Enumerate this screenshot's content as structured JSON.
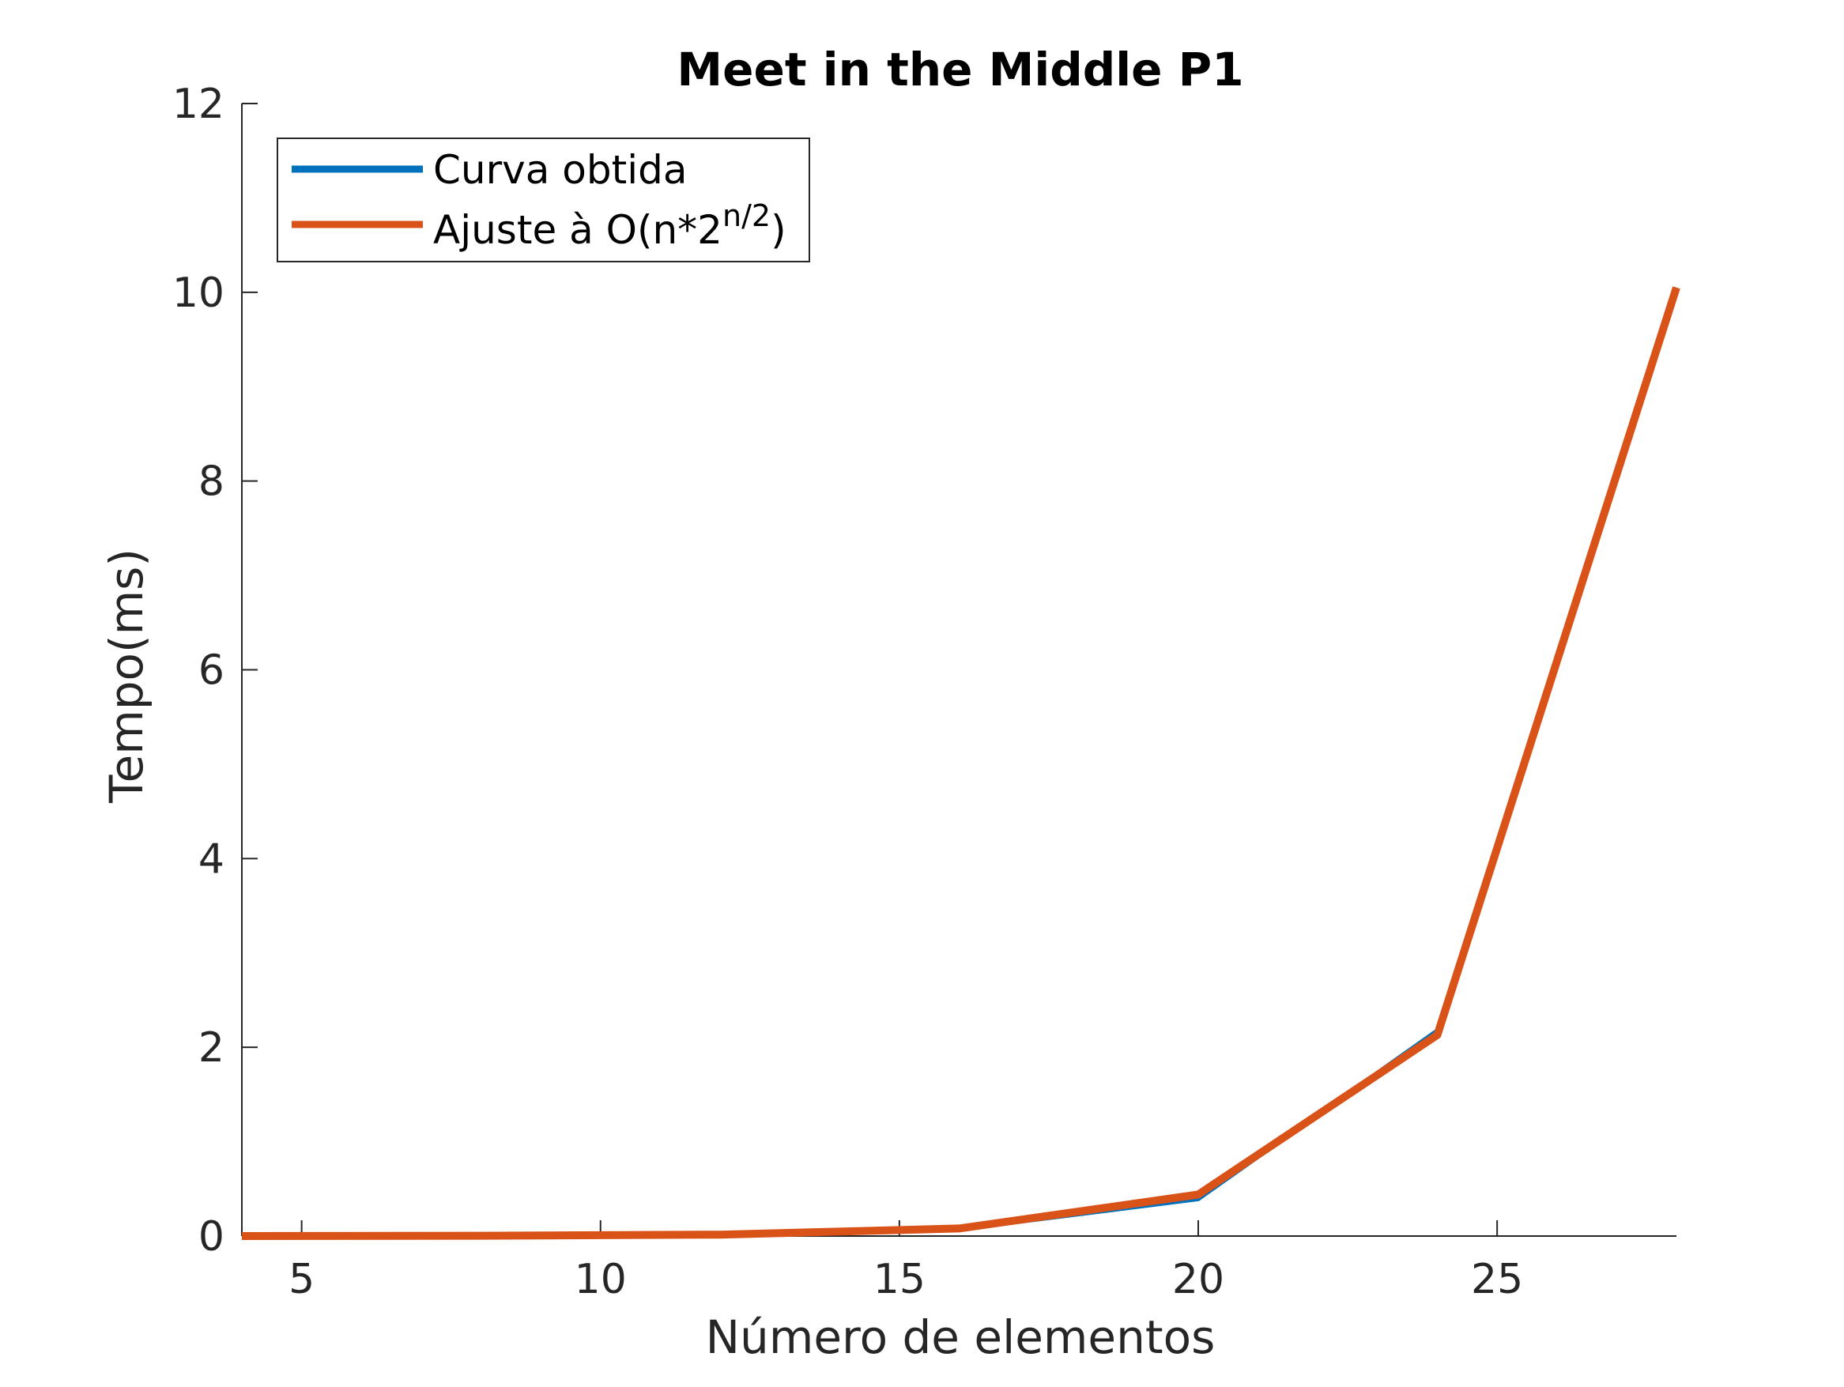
{
  "chart_data": {
    "type": "line",
    "title": "Meet in the Middle P1",
    "xlabel": "Número de elementos",
    "ylabel": "Tempo(ms)",
    "xlim": [
      4,
      28
    ],
    "ylim": [
      0,
      12
    ],
    "xticks": [
      5,
      10,
      15,
      20,
      25
    ],
    "yticks": [
      0,
      2,
      4,
      6,
      8,
      10,
      12
    ],
    "grid": false,
    "legend_position": "top-left",
    "x": [
      4,
      8,
      12,
      16,
      20,
      24,
      28
    ],
    "series": [
      {
        "name": "Curva obtida",
        "color": "#0072BD",
        "values": [
          0.0,
          0.002,
          0.01,
          0.07,
          0.39,
          2.18,
          10.05
        ]
      },
      {
        "name_prefix": "Ajuste à O(n*2",
        "name_superscript": "n/2",
        "name_suffix": ")",
        "color": "#D95319",
        "values": [
          0.0,
          0.003,
          0.015,
          0.08,
          0.44,
          2.13,
          10.05
        ]
      }
    ]
  }
}
